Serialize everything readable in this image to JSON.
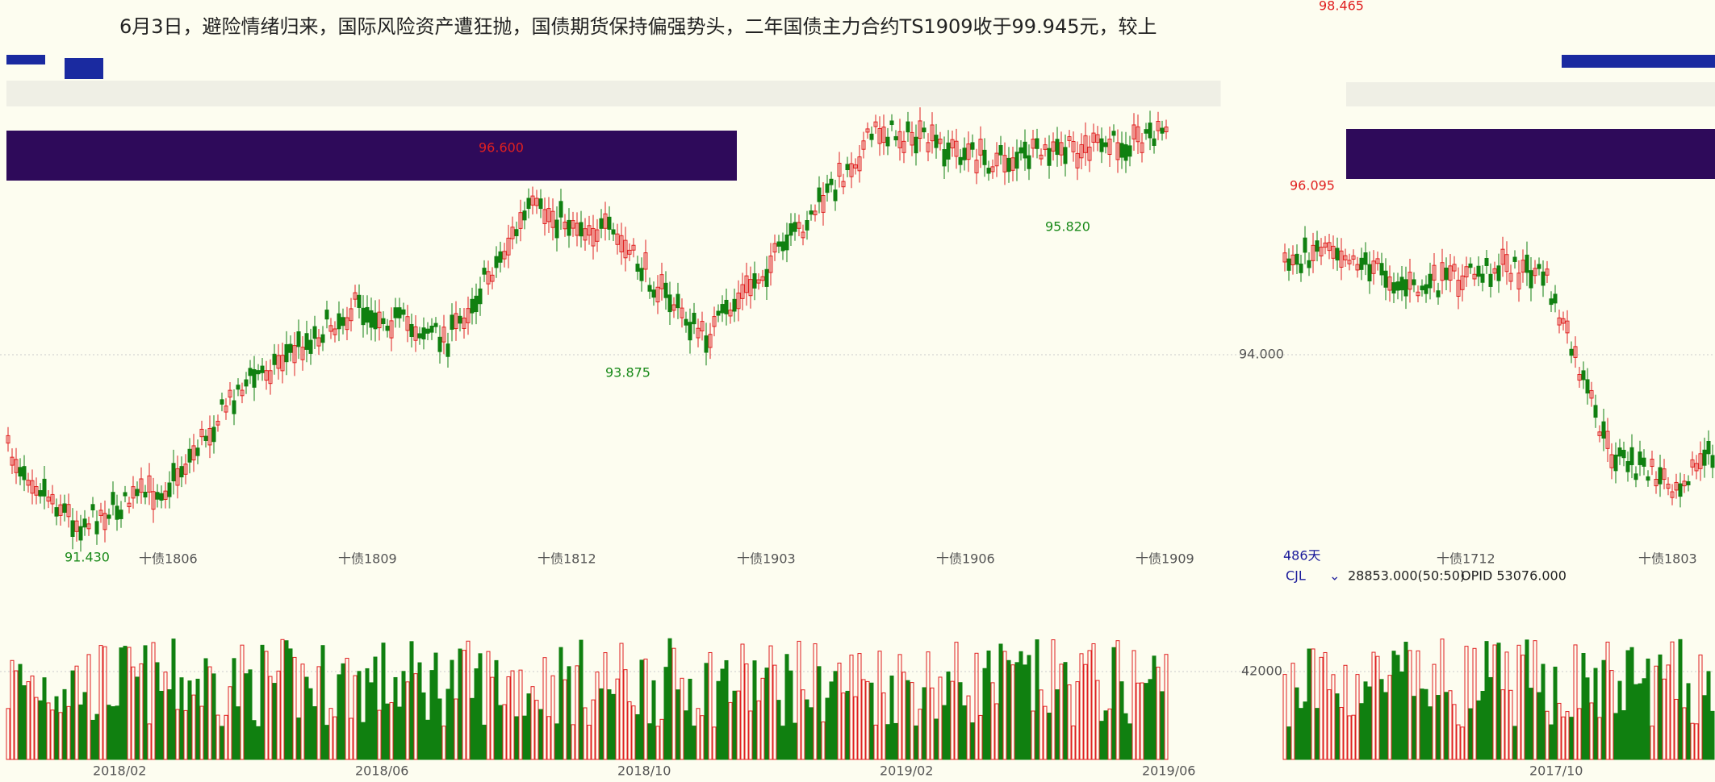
{
  "headline": "6月3日，避险情绪归来，国际风险资产遭狂抛，国债期货保持偏强势头，二年国债主力合约TS1909收于99.945元，较上",
  "left_panel": {
    "price_labels": [
      "96.600",
      "95.820",
      "93.875",
      "91.430"
    ],
    "contracts": [
      "十债1806",
      "十债1809",
      "十债1812",
      "十债1903",
      "十债1906",
      "十债1909"
    ],
    "dates": [
      "2018/02",
      "2018/06",
      "2018/10",
      "2019/02",
      "2019/06"
    ]
  },
  "right_panel": {
    "price_labels": [
      "98.465",
      "96.095"
    ],
    "price_tick": "94.000",
    "days": "486天",
    "contracts": [
      "十债1712",
      "十债1803"
    ],
    "indicator": "CJL",
    "indicator_value": "28853.000(50:50)",
    "opid": "OPID 53076.000",
    "volume_tick": "42000",
    "dates": [
      "2017/10"
    ]
  }
}
